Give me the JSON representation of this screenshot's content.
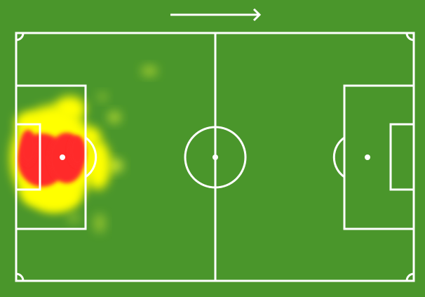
{
  "pitch": {
    "background_color": "#4a962b",
    "line_color": "#ffffff",
    "attack_direction": "right",
    "direction-icon": "arrow-right-icon"
  },
  "heatmap": {
    "colors": {
      "low": "#c8e632",
      "mid": "#ffff00",
      "high": "#ff2a2a"
    }
  }
}
